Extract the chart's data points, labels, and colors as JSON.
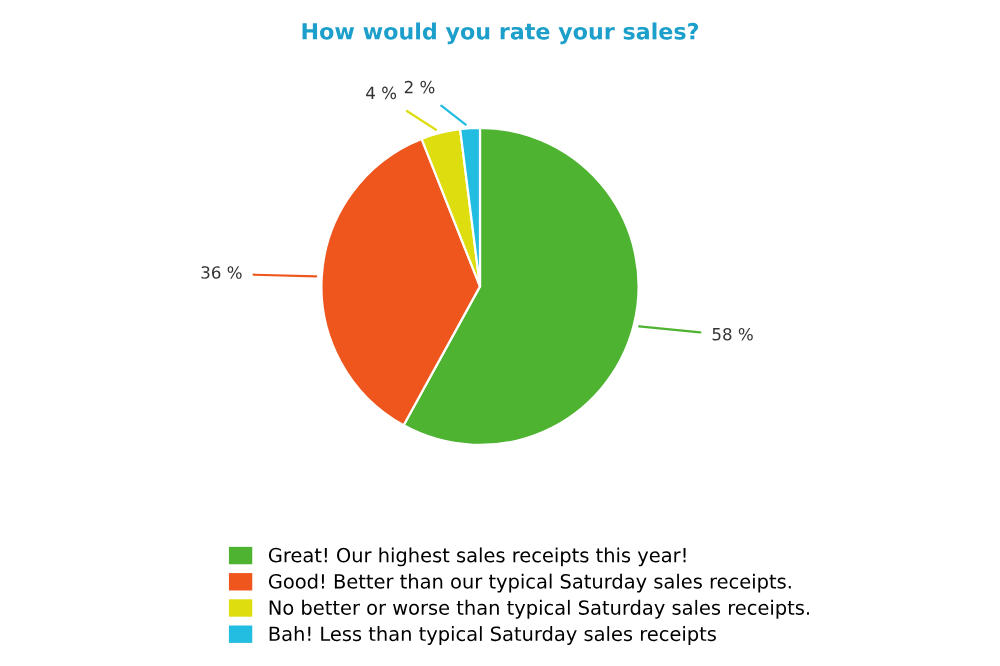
{
  "chart_data": {
    "type": "pie",
    "title": "How would you rate your sales?",
    "categories": [
      "Great! Our highest sales receipts this year!",
      "Good! Better than our typical Saturday sales receipts.",
      "No better or worse than typical Saturday sales receipts.",
      "Bah! Less than typical Saturday sales receipts"
    ],
    "values": [
      58,
      36,
      4,
      2
    ],
    "colors": [
      "#4db330",
      "#ee561d",
      "#dddd10",
      "#22bde0"
    ],
    "value_labels": [
      "58 %",
      "36 %",
      "4 %",
      "2 %"
    ],
    "legend": "bottom"
  }
}
